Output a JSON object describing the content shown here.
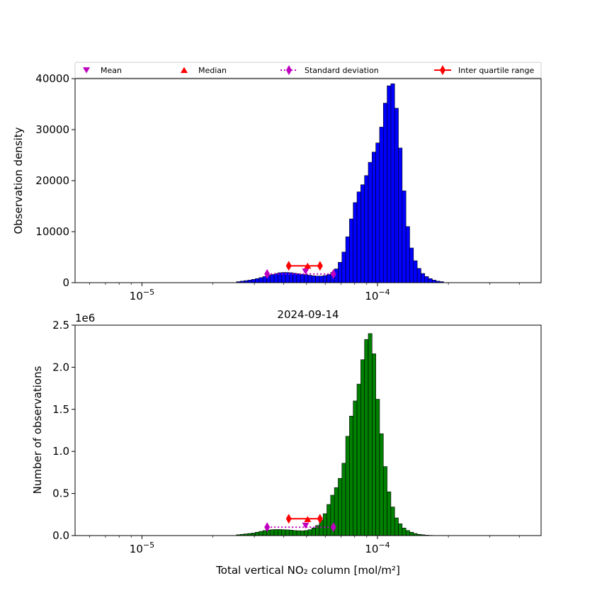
{
  "figure": {
    "title": "2024-09-14",
    "xlabel": "Total vertical NO₂ column [mol/m²]",
    "x_ticks": [
      {
        "value": 1e-05,
        "base": "10",
        "exp": "−5"
      },
      {
        "value": 0.0001,
        "base": "10",
        "exp": "−4"
      }
    ],
    "xlim": [
      5.2e-06,
      0.000495
    ],
    "xscale": "log"
  },
  "legend": {
    "placement": "top (above upper panel)",
    "entries": [
      {
        "label": "Mean",
        "marker": "triangle-down",
        "color": "#bf00bf"
      },
      {
        "label": "Median",
        "marker": "triangle-up",
        "color": "#ff0000"
      },
      {
        "label": "Standard deviation",
        "marker": "diamond",
        "line": "dotted",
        "color": "#bf00bf"
      },
      {
        "label": "Inter quartile range",
        "marker": "diamond",
        "line": "solid",
        "color": "#ff0000"
      }
    ]
  },
  "chart_data": [
    {
      "type": "bar",
      "panel": "top",
      "ylabel": "Observation density",
      "ylim": [
        0,
        40000
      ],
      "y_ticks": [
        0,
        10000,
        20000,
        30000,
        40000
      ],
      "bar_color": "#0000ff",
      "values": [
        0,
        0,
        0,
        0,
        0,
        0,
        0,
        0,
        0,
        0,
        0,
        0,
        0,
        0,
        0,
        0,
        0,
        0,
        0,
        0,
        0,
        0,
        0,
        0,
        0,
        0,
        0,
        0,
        0,
        0,
        0,
        0,
        0,
        0,
        0,
        0,
        0,
        0,
        0,
        0,
        0,
        0,
        0,
        0,
        0,
        0,
        0,
        0,
        0,
        0,
        200,
        300,
        400,
        500,
        650,
        800,
        1000,
        1200,
        1400,
        1600,
        1800,
        1950,
        2000,
        2000,
        1950,
        1850,
        1750,
        1650,
        1550,
        1450,
        1350,
        1300,
        1300,
        1400,
        1600,
        2000,
        2700,
        4000,
        6000,
        9000,
        12500,
        15700,
        17800,
        19200,
        21000,
        23600,
        25600,
        27400,
        30500,
        35200,
        38600,
        39000,
        34200,
        26400,
        18000,
        11000,
        6800,
        4300,
        2800,
        1800,
        1200,
        800,
        500,
        300,
        200,
        0,
        0,
        0,
        0,
        0,
        0,
        0,
        0,
        0,
        0,
        0,
        0,
        0,
        0,
        0,
        0,
        0,
        0,
        0,
        0,
        0,
        0,
        0,
        0,
        0,
        0,
        0,
        0,
        0,
        0,
        0,
        0,
        0,
        0,
        0,
        0,
        0,
        0,
        0,
        0,
        0,
        0,
        0,
        0,
        0,
        0,
        0,
        0,
        0,
        0,
        0,
        0,
        0,
        0,
        0,
        0
      ],
      "markers": {
        "mean": 4.95e-05,
        "median": 5.05e-05,
        "std_range": [
          3.4e-05,
          6.5e-05
        ],
        "iqr_range": [
          4.2e-05,
          5.7e-05
        ],
        "marker_y": {
          "mean": 2200,
          "median": 3300,
          "std": 1700,
          "iqr": 3300
        }
      }
    },
    {
      "type": "bar",
      "panel": "bottom",
      "ylabel": "Number of observations",
      "ylim": [
        0,
        2500000
      ],
      "y_ticks": [
        0,
        500000,
        1000000,
        1500000,
        2000000,
        2500000
      ],
      "y_tick_labels": [
        "0.0",
        "0.5",
        "1.0",
        "1.5",
        "2.0",
        "2.5"
      ],
      "offset_text": "1e6",
      "bar_color": "#008000",
      "values": [
        0,
        0,
        0,
        0,
        0,
        0,
        0,
        0,
        0,
        0,
        0,
        0,
        0,
        0,
        0,
        0,
        0,
        0,
        0,
        0,
        0,
        0,
        0,
        0,
        0,
        0,
        0,
        0,
        0,
        0,
        0,
        0,
        0,
        0,
        0,
        0,
        0,
        0,
        0,
        0,
        0,
        0,
        0,
        0,
        0,
        0,
        0,
        0,
        0,
        0,
        10000,
        15000,
        20000,
        25000,
        30000,
        40000,
        50000,
        60000,
        65000,
        70000,
        72000,
        72000,
        70000,
        68000,
        65000,
        60000,
        58000,
        56000,
        60000,
        70000,
        90000,
        120000,
        180000,
        260000,
        370000,
        480000,
        570000,
        680000,
        860000,
        1180000,
        1420000,
        1600000,
        1800000,
        2090000,
        2330000,
        2400000,
        2160000,
        1620000,
        1210000,
        820000,
        520000,
        340000,
        210000,
        140000,
        90000,
        60000,
        40000,
        25000,
        15000,
        10000,
        5000,
        3000,
        1000,
        0,
        0,
        0,
        0,
        0,
        0,
        0,
        0,
        0,
        0,
        0,
        0,
        0,
        0,
        0,
        0,
        0,
        0,
        0,
        0,
        0,
        0,
        0,
        0,
        0,
        0,
        0,
        0,
        0,
        0,
        0,
        0,
        0,
        0,
        0,
        0,
        0,
        0,
        0,
        0,
        0,
        0,
        0,
        0,
        0,
        0,
        0,
        0,
        0,
        0,
        0,
        0,
        0,
        0,
        0,
        0,
        0,
        0,
        0
      ],
      "markers": {
        "mean": 4.95e-05,
        "median": 5.05e-05,
        "std_range": [
          3.4e-05,
          6.5e-05
        ],
        "iqr_range": [
          4.2e-05,
          5.7e-05
        ],
        "marker_y": {
          "mean": 120000,
          "median": 195000,
          "std": 100000,
          "iqr": 200000
        }
      }
    }
  ]
}
